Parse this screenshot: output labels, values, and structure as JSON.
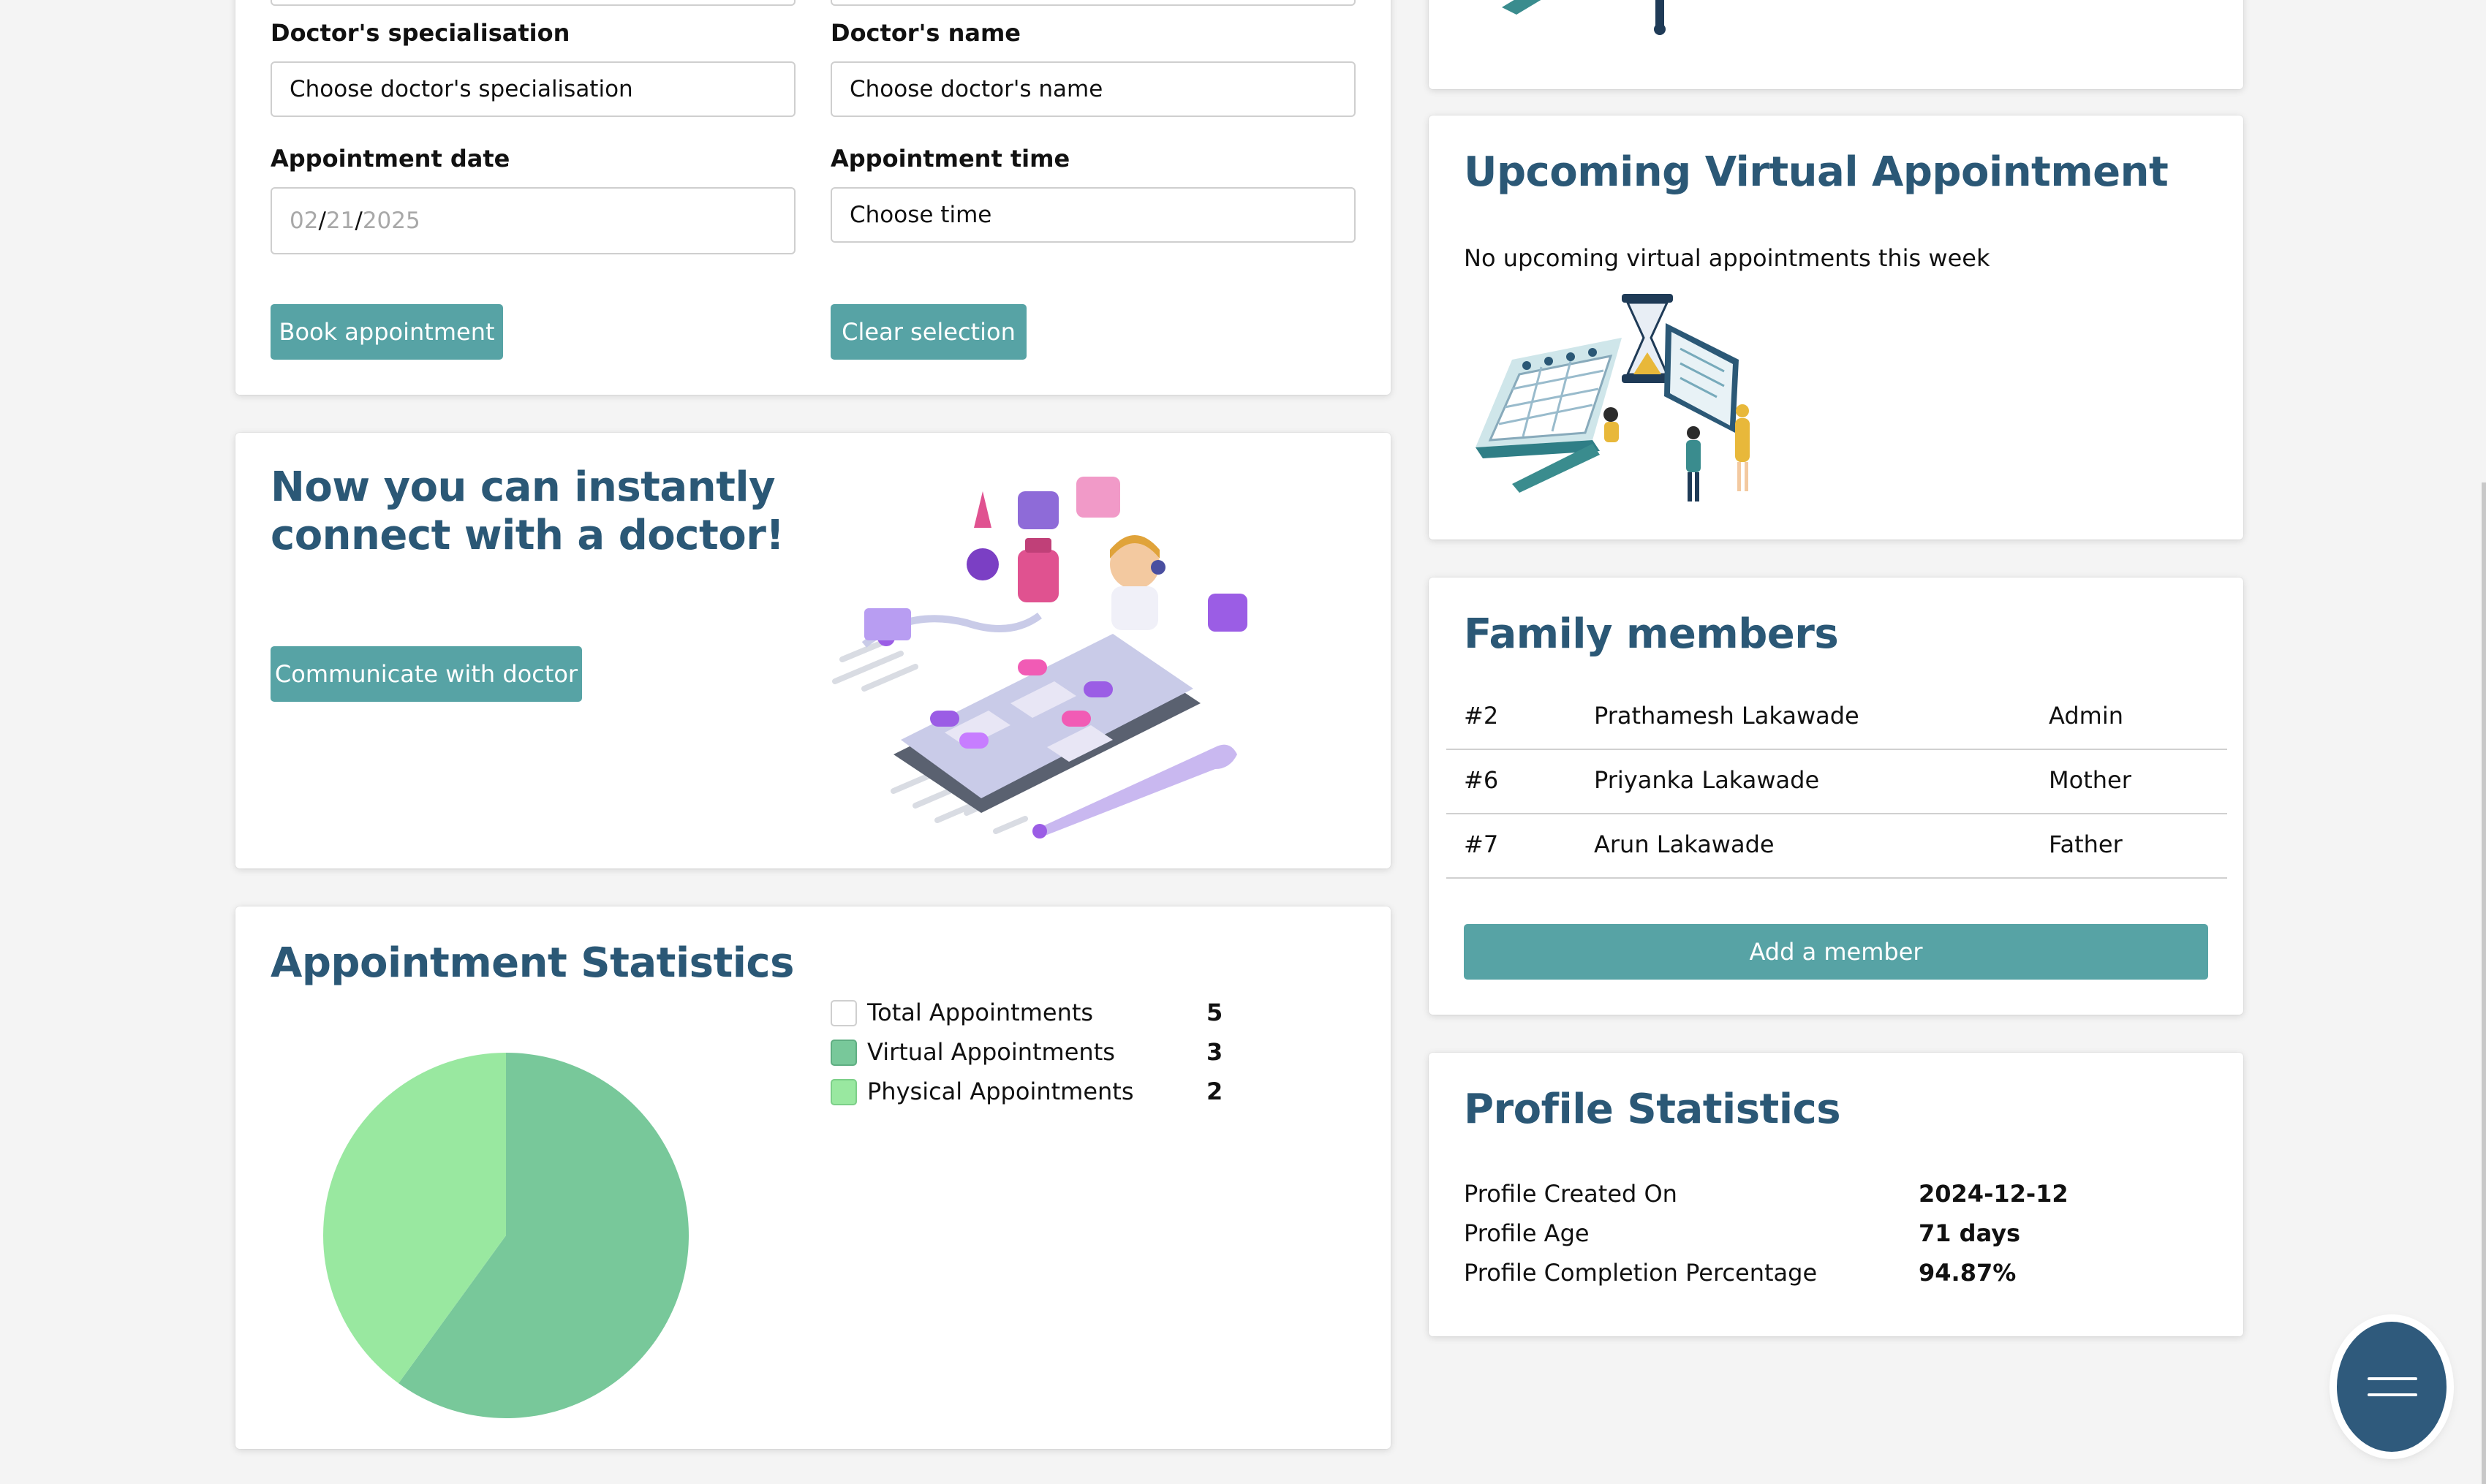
{
  "booking": {
    "specialisation_label": "Doctor's specialisation",
    "specialisation_value": "Choose doctor's specialisation",
    "doctor_label": "Doctor's name",
    "doctor_value": "Choose doctor's name",
    "date_label": "Appointment date",
    "date_month": "02",
    "date_day": "21",
    "date_year": "2025",
    "time_label": "Appointment time",
    "time_value": "Choose time",
    "book_button": "Book appointment",
    "clear_button": "Clear selection"
  },
  "connect": {
    "title_line1": "Now you can instantly",
    "title_line2": "connect with a doctor!",
    "button": "Communicate with doctor",
    "illustration_icon": "doctor-phone-illustration"
  },
  "stats": {
    "title": "Appointment Statistics",
    "legend": [
      {
        "label": "Total Appointments",
        "value": "5",
        "color": "#ffffff"
      },
      {
        "label": "Virtual Appointments",
        "value": "3",
        "color": "#78c89a"
      },
      {
        "label": "Physical Appointments",
        "value": "2",
        "color": "#99e8a0"
      }
    ]
  },
  "chart_data": {
    "type": "pie",
    "categories": [
      "Virtual Appointments",
      "Physical Appointments"
    ],
    "values": [
      3,
      2
    ],
    "colors": [
      "#78c89a",
      "#99e8a0"
    ]
  },
  "virtual": {
    "title": "Upcoming Virtual Appointment",
    "message": "No upcoming virtual appointments this week",
    "illustration_icon": "calendar-hourglass-illustration"
  },
  "family": {
    "title": "Family members",
    "members": [
      {
        "id": "#2",
        "name": "Prathamesh Lakawade",
        "relation": "Admin"
      },
      {
        "id": "#6",
        "name": "Priyanka Lakawade",
        "relation": "Mother"
      },
      {
        "id": "#7",
        "name": "Arun Lakawade",
        "relation": "Father"
      }
    ],
    "add_button": "Add a member"
  },
  "profile": {
    "title": "Profile Statistics",
    "rows": [
      {
        "label": "Profile Created On",
        "value": "2024-12-12"
      },
      {
        "label": "Profile Age",
        "value": "71 days"
      },
      {
        "label": "Profile Completion Percentage",
        "value": "94.87%"
      }
    ]
  },
  "fab": {
    "icon": "menu-icon"
  },
  "colors": {
    "accent": "#57a3a5",
    "title": "#2b5876",
    "fab": "#2f5a7c"
  }
}
